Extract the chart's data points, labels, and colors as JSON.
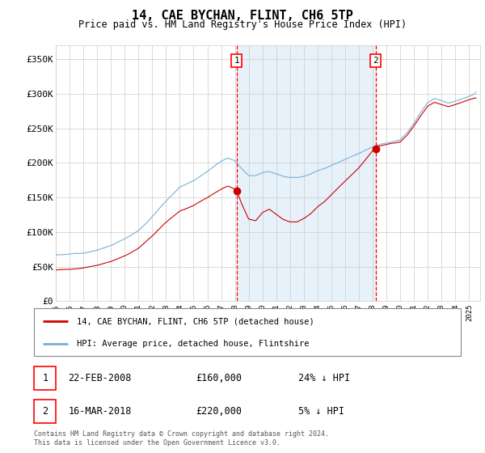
{
  "title": "14, CAE BYCHAN, FLINT, CH6 5TP",
  "subtitle": "Price paid vs. HM Land Registry's House Price Index (HPI)",
  "ylim": [
    0,
    370000
  ],
  "xlim_start": 1995.0,
  "xlim_end": 2025.8,
  "sale1_date": 2008.12,
  "sale1_price": 160000,
  "sale2_date": 2018.21,
  "sale2_price": 220000,
  "sale1_text": "22-FEB-2008",
  "sale1_amount": "£160,000",
  "sale1_pct": "24% ↓ HPI",
  "sale2_text": "16-MAR-2018",
  "sale2_amount": "£220,000",
  "sale2_pct": "5% ↓ HPI",
  "legend_line1": "14, CAE BYCHAN, FLINT, CH6 5TP (detached house)",
  "legend_line2": "HPI: Average price, detached house, Flintshire",
  "footer1": "Contains HM Land Registry data © Crown copyright and database right 2024.",
  "footer2": "This data is licensed under the Open Government Licence v3.0.",
  "line_red": "#cc0000",
  "line_blue": "#7bafd4",
  "shade_color": "#d8e8f5"
}
